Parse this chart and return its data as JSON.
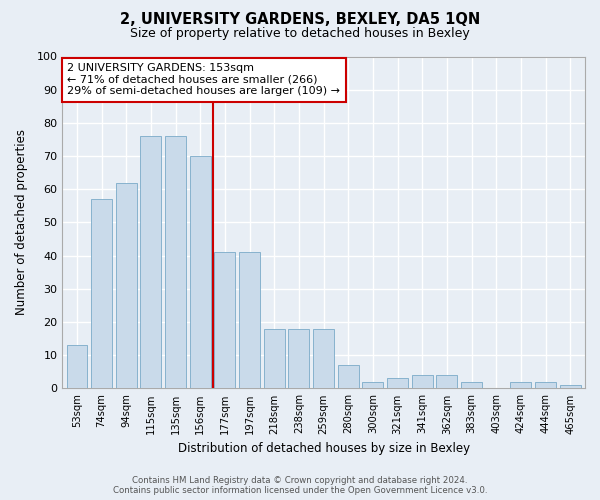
{
  "title1": "2, UNIVERSITY GARDENS, BEXLEY, DA5 1QN",
  "title2": "Size of property relative to detached houses in Bexley",
  "xlabel": "Distribution of detached houses by size in Bexley",
  "ylabel": "Number of detached properties",
  "categories": [
    "53sqm",
    "74sqm",
    "94sqm",
    "115sqm",
    "135sqm",
    "156sqm",
    "177sqm",
    "197sqm",
    "218sqm",
    "238sqm",
    "259sqm",
    "280sqm",
    "300sqm",
    "321sqm",
    "341sqm",
    "362sqm",
    "383sqm",
    "403sqm",
    "424sqm",
    "444sqm",
    "465sqm"
  ],
  "values": [
    13,
    57,
    62,
    76,
    76,
    70,
    41,
    41,
    18,
    18,
    18,
    7,
    2,
    3,
    4,
    4,
    2,
    0,
    2,
    2,
    1
  ],
  "bar_color": "#c9daea",
  "bar_edge_color": "#7aaac8",
  "ref_line_x": 5.5,
  "ref_line_color": "#cc0000",
  "annotation_text": "2 UNIVERSITY GARDENS: 153sqm\n← 71% of detached houses are smaller (266)\n29% of semi-detached houses are larger (109) →",
  "annotation_box_color": "white",
  "annotation_box_edge": "#cc0000",
  "ylim": [
    0,
    100
  ],
  "yticks": [
    0,
    10,
    20,
    30,
    40,
    50,
    60,
    70,
    80,
    90,
    100
  ],
  "footer1": "Contains HM Land Registry data © Crown copyright and database right 2024.",
  "footer2": "Contains public sector information licensed under the Open Government Licence v3.0.",
  "background_color": "#e8eef5",
  "plot_bg_color": "#e8eef5",
  "grid_color": "#ffffff",
  "spine_color": "#aaaaaa"
}
